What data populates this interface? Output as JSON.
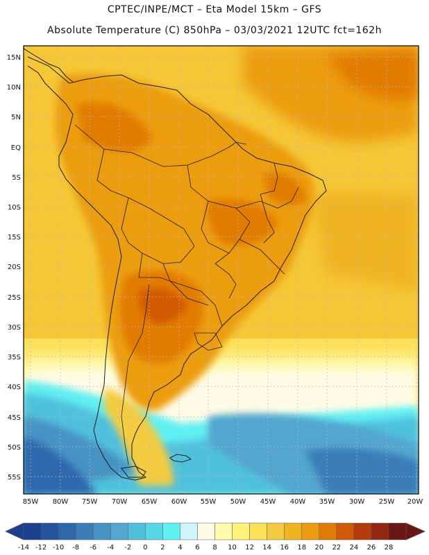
{
  "header": {
    "line1": "CPTEC/INPE/MCT –  Eta Model 15km – GFS",
    "line2": "Absolute Temperature (C) 850hPa – 03/03/2021 12UTC fct=162h"
  },
  "axes": {
    "lat_labels": [
      "15N",
      "10N",
      "5N",
      "EQ",
      "5S",
      "10S",
      "15S",
      "20S",
      "25S",
      "30S",
      "35S",
      "40S",
      "45S",
      "50S",
      "55S"
    ],
    "lon_labels": [
      "85W",
      "80W",
      "75W",
      "70W",
      "65W",
      "60W",
      "55W",
      "50W",
      "45W",
      "40W",
      "35W",
      "30W",
      "25W",
      "20W"
    ]
  },
  "colorbar": {
    "labels": [
      "-14",
      "-12",
      "-10",
      "-8",
      "-6",
      "-4",
      "-2",
      "0",
      "2",
      "4",
      "6",
      "8",
      "10",
      "12",
      "14",
      "16",
      "18",
      "20",
      "22",
      "24",
      "26",
      "28"
    ],
    "colors": [
      "#1c3f8f",
      "#24549f",
      "#2d68ad",
      "#3a7db9",
      "#4793c4",
      "#52a6cf",
      "#4fc1dc",
      "#57d7e6",
      "#5ff0f3",
      "#cff4fb",
      "#fffbe6",
      "#fffba8",
      "#fff37a",
      "#fbe05a",
      "#f5cc3f",
      "#f0b420",
      "#ec9d0f",
      "#e27b04",
      "#d25a05",
      "#b53b0a",
      "#912611",
      "#6a1612"
    ]
  }
}
